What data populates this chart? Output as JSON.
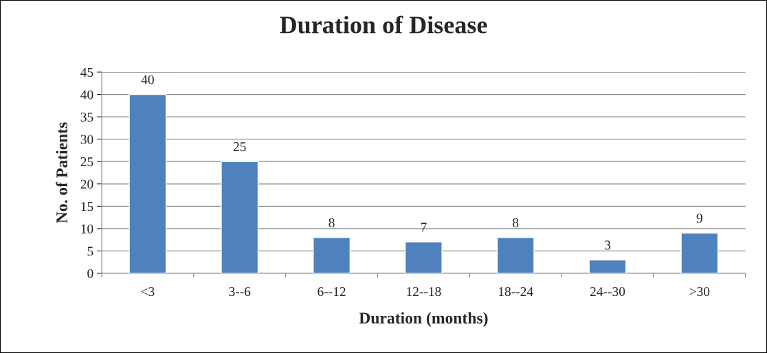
{
  "chart_data": {
    "type": "bar",
    "title": "Duration of Disease",
    "xlabel": "Duration (months)",
    "ylabel": "No. of Patients",
    "categories": [
      "<3",
      "3--6",
      "6--12",
      "12--18",
      "18--24",
      "24--30",
      ">30"
    ],
    "values": [
      40,
      25,
      8,
      7,
      8,
      3,
      9
    ],
    "color": "#4f81bd",
    "ylim": [
      0,
      45
    ],
    "yticks": [
      0,
      5,
      10,
      15,
      20,
      25,
      30,
      35,
      40,
      45
    ],
    "grid": "y",
    "data_labels": true
  }
}
